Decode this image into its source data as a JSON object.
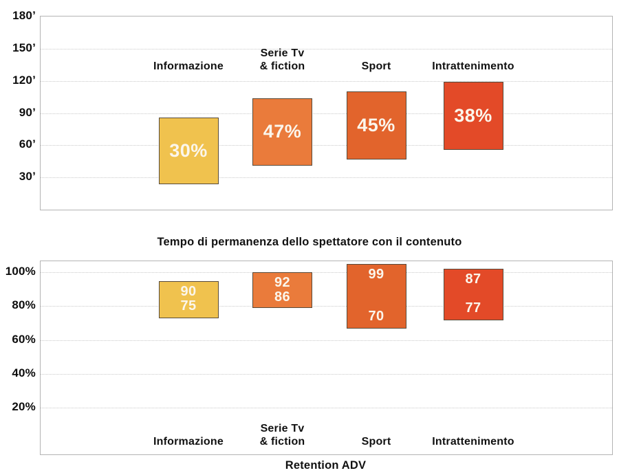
{
  "page": {
    "background": "#ffffff",
    "text_color": "#111111",
    "bar_label_color": "#fbf6ec",
    "grid_color": "#c9c9c9",
    "panel_border_color": "#b3b3b3"
  },
  "chart_data": [
    {
      "type": "bar",
      "subtype": "floating-range-columns",
      "title": "",
      "legend": "none",
      "grid": "dotted-horizontal",
      "y_axis": {
        "unit": "minutes",
        "range": [
          0,
          180
        ],
        "ticks": [
          {
            "label": "180’",
            "value": 180
          },
          {
            "label": "150’",
            "value": 150
          },
          {
            "label": "120’",
            "value": 120
          },
          {
            "label": "90’",
            "value": 90
          },
          {
            "label": "60’",
            "value": 60
          },
          {
            "label": "30’",
            "value": 30
          }
        ]
      },
      "category_label_placement": "above-bars",
      "series": [
        {
          "category": "Informazione",
          "category_lines": [
            "Informazione"
          ],
          "value_label": "30%",
          "range_minutes": [
            24,
            86
          ],
          "color": "#F0C24E"
        },
        {
          "category": "Serie Tv & fiction",
          "category_lines": [
            "Serie Tv",
            "& fiction"
          ],
          "value_label": "47%",
          "range_minutes": [
            41,
            104
          ],
          "color": "#EA7B3B"
        },
        {
          "category": "Sport",
          "category_lines": [
            "Sport"
          ],
          "value_label": "45%",
          "range_minutes": [
            47,
            110
          ],
          "color": "#E2642C"
        },
        {
          "category": "Intrattenimento",
          "category_lines": [
            "Intrattenimento"
          ],
          "value_label": "38%",
          "range_minutes": [
            56,
            119
          ],
          "color": "#E34A28"
        }
      ]
    },
    {
      "type": "bar",
      "subtype": "floating-range-columns",
      "title": "Tempo di permanenza dello spettatore con il contenuto",
      "xlabel": "Retention ADV",
      "legend": "none",
      "grid": "dotted-horizontal",
      "y_axis": {
        "unit": "percent",
        "range": [
          0,
          100
        ],
        "drawn_range": [
          -7.3,
          106.3
        ],
        "ticks": [
          {
            "label": "100%",
            "value": 100
          },
          {
            "label": "80%",
            "value": 80
          },
          {
            "label": "60%",
            "value": 60
          },
          {
            "label": "40%",
            "value": 40
          },
          {
            "label": "20%",
            "value": 20
          }
        ]
      },
      "category_label_placement": "below-bars-inside",
      "series": [
        {
          "category": "Informazione",
          "category_lines": [
            "Informazione"
          ],
          "value_high": 90,
          "value_low": 75,
          "drawn_range_percent": [
            72.8,
            94.5
          ],
          "color": "#F0C24E"
        },
        {
          "category": "Serie Tv & fiction",
          "category_lines": [
            "Serie Tv",
            "& fiction"
          ],
          "value_high": 92,
          "value_low": 86,
          "drawn_range_percent": [
            78.8,
            99.7
          ],
          "color": "#EA7B3B"
        },
        {
          "category": "Sport",
          "category_lines": [
            "Sport"
          ],
          "value_high": 99,
          "value_low": 70,
          "drawn_range_percent": [
            66.7,
            104.5
          ],
          "color": "#E2642C"
        },
        {
          "category": "Intrattenimento",
          "category_lines": [
            "Intrattenimento"
          ],
          "value_high": 87,
          "value_low": 77,
          "drawn_range_percent": [
            71.6,
            101.7
          ],
          "color": "#E34A28"
        }
      ]
    }
  ]
}
